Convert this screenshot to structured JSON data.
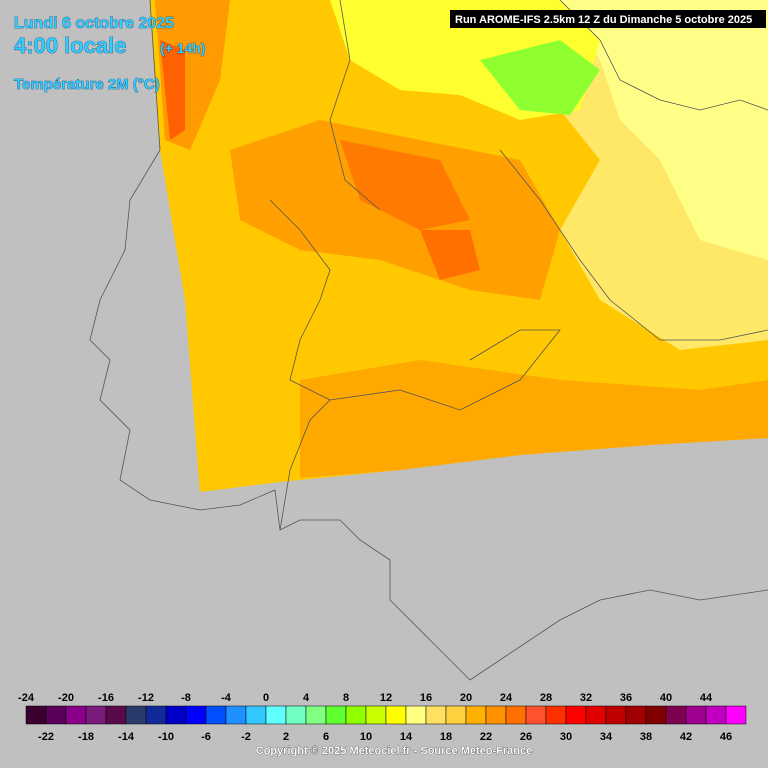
{
  "header": {
    "date": "Lundi 6 octobre 2025",
    "time": "4:00 locale",
    "lead": "(+ 14h)",
    "parameter": "Température 2M (°C)",
    "run": "Run AROME-IFS 2.5km 12 Z du Dimanche 5 octobre 2025"
  },
  "colorbar": {
    "top_labels": [
      -24,
      -20,
      -16,
      -12,
      -8,
      -4,
      0,
      4,
      8,
      12,
      16,
      20,
      24,
      28,
      32,
      36,
      40,
      44
    ],
    "bottom_labels": [
      -22,
      -18,
      -14,
      -10,
      -6,
      -2,
      2,
      6,
      10,
      14,
      18,
      22,
      26,
      30,
      34,
      38,
      42,
      46
    ],
    "colors": [
      "#3c0030",
      "#5a005a",
      "#8a008a",
      "#7a1a7a",
      "#5a0a4a",
      "#2a3a6a",
      "#102a9a",
      "#0000c8",
      "#0000ff",
      "#0050ff",
      "#1e90ff",
      "#30c8ff",
      "#60ffff",
      "#70ffc0",
      "#80ff80",
      "#60ff30",
      "#90ff00",
      "#c8ff00",
      "#ffff00",
      "#ffff80",
      "#ffe060",
      "#ffd040",
      "#ffb000",
      "#ff9000",
      "#ff7000",
      "#ff5030",
      "#ff3000",
      "#ff0000",
      "#e00000",
      "#c00000",
      "#a00000",
      "#800000",
      "#800050",
      "#a00090",
      "#c000c0",
      "#ff00ff"
    ]
  },
  "footer": {
    "copyright": "Copyright © 2025 Meteociel.fr - Source Meteo-France"
  }
}
